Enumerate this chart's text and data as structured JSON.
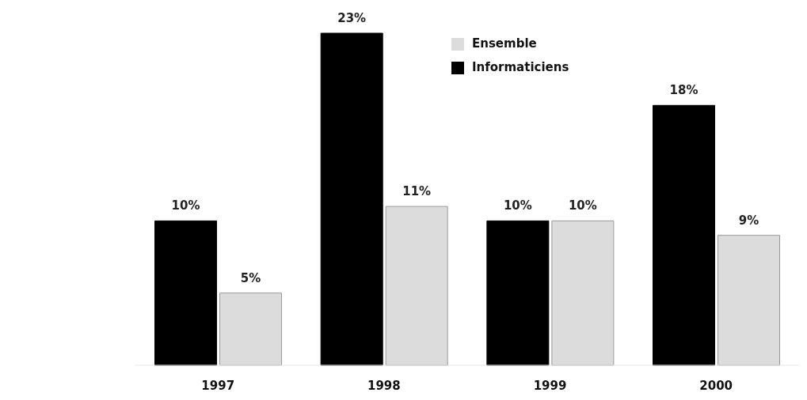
{
  "chart_data": {
    "type": "bar",
    "categories": [
      "1997",
      "1998",
      "1999",
      "2000"
    ],
    "series": [
      {
        "name": "Informaticiens",
        "color": "#000000",
        "values": [
          10,
          23,
          10,
          18
        ],
        "value_labels": [
          "10%",
          "23%",
          "10%",
          "18%"
        ]
      },
      {
        "name": "Ensemble",
        "color": "#dcdcdc",
        "values": [
          5,
          11,
          10,
          9
        ],
        "value_labels": [
          "5%",
          "11%",
          "10%",
          "9%"
        ]
      }
    ],
    "legend": "top",
    "grid": false
  }
}
